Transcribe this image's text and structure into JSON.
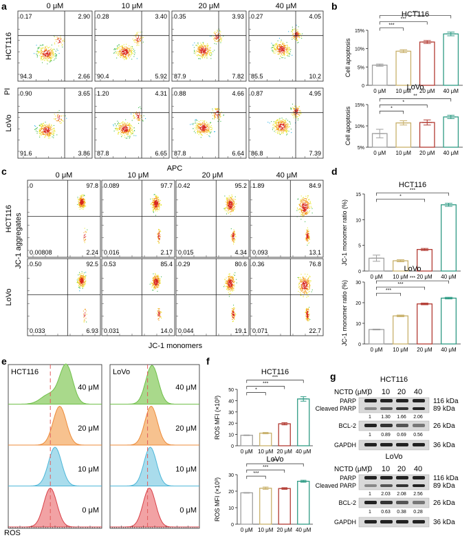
{
  "colors": {
    "c0": "#9e9e9e",
    "c10": "#c8b06a",
    "c20": "#b23a32",
    "c40": "#2e9a84",
    "grid": "#555555"
  },
  "panel_letters": [
    "a",
    "b",
    "c",
    "d",
    "e",
    "f",
    "g"
  ],
  "panel_a": {
    "concs": [
      "0 μM",
      "10 μM",
      "20 μM",
      "40 μM"
    ],
    "rows": [
      {
        "label": "HCT116",
        "quads": [
          [
            "0.17",
            "2.90",
            "94.3",
            "2.66"
          ],
          [
            "0.28",
            "3.40",
            "90.4",
            "5.92"
          ],
          [
            "0.35",
            "3.93",
            "87.9",
            "7.82"
          ],
          [
            "0.27",
            "4.05",
            "85.5",
            "10.2"
          ]
        ]
      },
      {
        "label": "LoVo",
        "quads": [
          [
            "0.90",
            "3.65",
            "91.6",
            "3.86"
          ],
          [
            "1.20",
            "4.31",
            "87.8",
            "6.65"
          ],
          [
            "0.88",
            "4.66",
            "87.8",
            "6.64"
          ],
          [
            "0.87",
            "4.95",
            "86.8",
            "7.39"
          ]
        ]
      }
    ],
    "xlabel": "APC",
    "ylabel": "PI"
  },
  "panel_c": {
    "concs": [
      "0 μM",
      "10 μM",
      "20 μM",
      "40 μM"
    ],
    "rows": [
      {
        "label": "HCT116",
        "quads": [
          [
            "0",
            "97.8",
            "0.00808",
            "2.24"
          ],
          [
            "0.089",
            "97.7",
            "0.016",
            "2.17"
          ],
          [
            "0.42",
            "95.2",
            "0.015",
            "4.34"
          ],
          [
            "1.89",
            "84.9",
            "0.093",
            "13.1"
          ]
        ]
      },
      {
        "label": "LoVo",
        "quads": [
          [
            "0.50",
            "92.5",
            "0.033",
            "6.93"
          ],
          [
            "0.53",
            "85.4",
            "0.031",
            "14.0"
          ],
          [
            "0.29",
            "80.6",
            "0.044",
            "19.1"
          ],
          [
            "0.36",
            "76.8",
            "0.071",
            "22.7"
          ]
        ]
      }
    ],
    "xlabel": "JC-1 monomers",
    "ylabel": "JC-1 aggregates"
  },
  "panel_e": {
    "panels": [
      {
        "title": "HCT116"
      },
      {
        "title": "LoVo"
      }
    ],
    "labels": [
      "40 μM",
      "20 μM",
      "10 μM",
      "0 μM"
    ],
    "xlabel": "ROS"
  },
  "panel_g": {
    "blocks": [
      {
        "title": "HCT116",
        "nctd_label": "NCTD (μM)",
        "concs": [
          "0",
          "10",
          "20",
          "40"
        ],
        "rows": [
          {
            "names": [
              "PARP",
              "Cleaved PARP"
            ],
            "kdas": [
              "116 kDa",
              "89 kDa"
            ],
            "vals": [
              "1",
              "1.30",
              "1.66",
              "2.06"
            ]
          },
          {
            "names": [
              "BCL-2"
            ],
            "kdas": [
              "26 kDa"
            ],
            "vals": [
              "1",
              "0.89",
              "0.69",
              "0.56"
            ]
          },
          {
            "names": [
              "GAPDH"
            ],
            "kdas": [
              "36 kDa"
            ],
            "vals": []
          }
        ]
      },
      {
        "title": "LoVo",
        "nctd_label": "NCTD (μM)",
        "concs": [
          "0",
          "10",
          "20",
          "40"
        ],
        "rows": [
          {
            "names": [
              "PARP",
              "Cleaved PARP"
            ],
            "kdas": [
              "116 kDa",
              "89 kDa"
            ],
            "vals": [
              "1",
              "2.03",
              "2.08",
              "2.56"
            ]
          },
          {
            "names": [
              "BCL-2"
            ],
            "kdas": [
              "26 kDa"
            ],
            "vals": [
              "1",
              "0.63",
              "0.38",
              "0.28"
            ]
          },
          {
            "names": [
              "GAPDH"
            ],
            "kdas": [
              "36 kDa"
            ],
            "vals": []
          }
        ]
      }
    ]
  },
  "chart_data": [
    {
      "id": "b1",
      "type": "bar",
      "title": "HCT116",
      "ylabel": "Cell apoptosis",
      "categories": [
        "0 μM",
        "10 μM",
        "20 μM",
        "40 μM"
      ],
      "values": [
        5.5,
        9.3,
        11.8,
        14.0
      ],
      "errors": [
        0.3,
        0.4,
        0.4,
        0.5
      ],
      "ylim": [
        0,
        15
      ],
      "yticks": [
        0,
        5,
        10,
        15
      ],
      "ytick_labels": [
        "0",
        "5%",
        "10%",
        "15%"
      ],
      "sig": [
        {
          "to": 1,
          "label": "***"
        },
        {
          "to": 2,
          "label": "***"
        },
        {
          "to": 3,
          "label": "***"
        }
      ]
    },
    {
      "id": "b2",
      "type": "bar",
      "title": "LoVo",
      "ylabel": "Cell apoptosis",
      "categories": [
        "0 μM",
        "10 μM",
        "20 μM",
        "40 μM"
      ],
      "values": [
        8.2,
        10.7,
        10.8,
        12.1
      ],
      "errors": [
        1.0,
        0.5,
        0.6,
        0.4
      ],
      "ylim": [
        5,
        15
      ],
      "yticks": [
        5,
        10,
        15
      ],
      "ytick_labels": [
        "5%",
        "10%",
        "15%"
      ],
      "sig": [
        {
          "to": 1,
          "label": "*"
        },
        {
          "to": 2,
          "label": "*"
        },
        {
          "to": 3,
          "label": "**"
        }
      ]
    },
    {
      "id": "d1",
      "type": "bar",
      "title": "HCT116",
      "ylabel": "JC-1 monomer ratio (%)",
      "categories": [
        "0 μM",
        "10 μM",
        "20 μM",
        "40 μM"
      ],
      "values": [
        2.5,
        2.0,
        4.2,
        12.9
      ],
      "errors": [
        0.6,
        0.2,
        0.2,
        0.3
      ],
      "ylim": [
        0,
        15
      ],
      "yticks": [
        0,
        5,
        10,
        15
      ],
      "ytick_labels": [
        "0",
        "5",
        "10",
        "15"
      ],
      "sig": [
        {
          "to": 2,
          "label": "*"
        },
        {
          "to": 3,
          "label": "***"
        }
      ]
    },
    {
      "id": "d2",
      "type": "bar",
      "title": "LoVo",
      "ylabel": "JC-1 monomer ratio (%)",
      "categories": [
        "0 μM",
        "10 μM",
        "20 μM",
        "40 μM"
      ],
      "values": [
        7.0,
        13.6,
        19.4,
        22.2
      ],
      "errors": [
        0.2,
        0.4,
        0.4,
        0.4
      ],
      "ylim": [
        0,
        30
      ],
      "yticks": [
        0,
        10,
        20,
        30
      ],
      "ytick_labels": [
        "0",
        "10",
        "20",
        "30"
      ],
      "sig": [
        {
          "to": 1,
          "label": "***"
        },
        {
          "to": 2,
          "label": "***"
        },
        {
          "to": 3,
          "label": "***"
        }
      ]
    },
    {
      "id": "f1",
      "type": "bar",
      "title": "HCT116",
      "ylabel": "ROS MFI (×10³)",
      "categories": [
        "0 μM",
        "10 μM",
        "20 μM",
        "40 μM"
      ],
      "values": [
        9.3,
        11.2,
        19.5,
        41.5
      ],
      "errors": [
        0.3,
        0.6,
        1.0,
        2.0
      ],
      "ylim": [
        0,
        50
      ],
      "yticks": [
        0,
        10,
        20,
        30,
        40,
        50
      ],
      "ytick_labels": [
        "0",
        "10",
        "20",
        "30",
        "40",
        "50"
      ],
      "sig": [
        {
          "to": 1,
          "label": "*"
        },
        {
          "to": 2,
          "label": "***"
        },
        {
          "to": 3,
          "label": "***"
        }
      ]
    },
    {
      "id": "f2",
      "type": "bar",
      "title": "LoVo",
      "ylabel": "ROS MFI (×10³)",
      "categories": [
        "0 μM",
        "10 μM",
        "20 μM",
        "40 μM"
      ],
      "values": [
        19.0,
        21.8,
        21.6,
        26.0
      ],
      "errors": [
        0.2,
        0.7,
        0.5,
        0.6
      ],
      "ylim": [
        0,
        30
      ],
      "yticks": [
        0,
        10,
        20,
        30
      ],
      "ytick_labels": [
        "0",
        "10",
        "20",
        "30"
      ],
      "sig": [
        {
          "to": 1,
          "label": "***"
        },
        {
          "to": 2,
          "label": "***"
        },
        {
          "to": 3,
          "label": "***"
        }
      ]
    }
  ]
}
